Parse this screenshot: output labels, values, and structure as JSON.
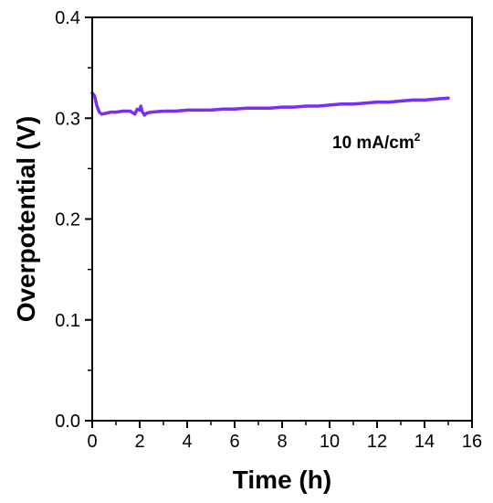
{
  "chart_data": {
    "type": "line",
    "xlabel": "Time (h)",
    "ylabel": "Overpotential (V)",
    "xlim": [
      0,
      16
    ],
    "ylim": [
      0.0,
      0.4
    ],
    "xticks": [
      "0",
      "2",
      "4",
      "6",
      "8",
      "10",
      "12",
      "14",
      "16"
    ],
    "yticks": [
      "0.0",
      "0.1",
      "0.2",
      "0.3",
      "0.4"
    ],
    "grid": false,
    "annotation": {
      "text": "10 mA/cm",
      "sup": "2"
    },
    "series": [
      {
        "color": "#7b2ff2",
        "x": [
          0.0,
          0.1,
          0.2,
          0.3,
          0.4,
          0.6,
          0.8,
          1.0,
          1.3,
          1.6,
          1.8,
          1.9,
          2.0,
          2.05,
          2.1,
          2.2,
          2.3,
          2.5,
          3.0,
          3.5,
          4.0,
          4.5,
          5.0,
          5.5,
          6.0,
          6.5,
          7.0,
          7.5,
          8.0,
          8.5,
          9.0,
          9.5,
          10.0,
          10.5,
          11.0,
          11.5,
          12.0,
          12.5,
          13.0,
          13.5,
          14.0,
          14.5,
          15.0
        ],
        "y": [
          0.325,
          0.322,
          0.312,
          0.306,
          0.304,
          0.305,
          0.306,
          0.306,
          0.307,
          0.307,
          0.304,
          0.309,
          0.308,
          0.312,
          0.307,
          0.303,
          0.305,
          0.306,
          0.307,
          0.307,
          0.308,
          0.308,
          0.308,
          0.309,
          0.309,
          0.31,
          0.31,
          0.31,
          0.311,
          0.311,
          0.312,
          0.312,
          0.313,
          0.314,
          0.314,
          0.315,
          0.316,
          0.316,
          0.317,
          0.318,
          0.318,
          0.319,
          0.32
        ]
      }
    ]
  }
}
